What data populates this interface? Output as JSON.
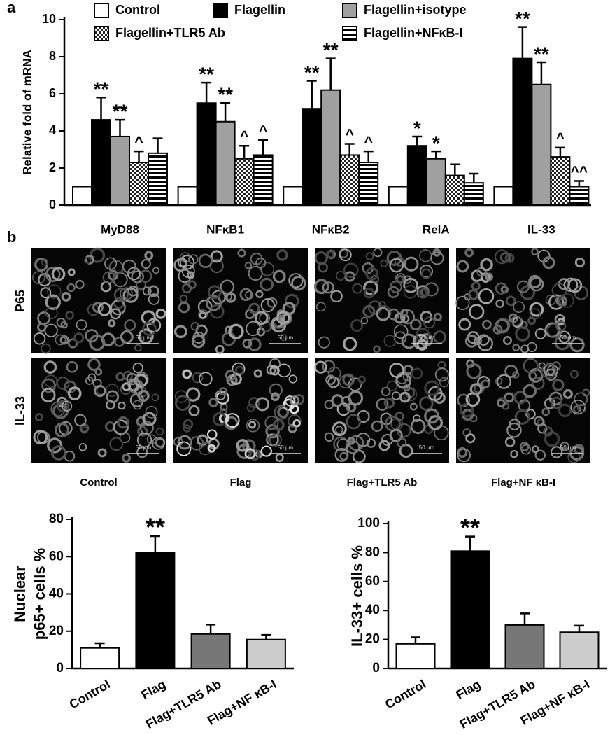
{
  "figure": {
    "panel_labels": [
      "a",
      "b"
    ],
    "image_rows": [
      "P65",
      "IL-33"
    ],
    "image_columns": [
      "Control",
      "Flag",
      "Flag+TLR5 Ab",
      "Flag+NF κB-I"
    ],
    "scale_bar": "50 μm"
  },
  "chart_data": [
    {
      "type": "bar",
      "ylabel": "Relative fold of mRNA",
      "categories": [
        "MyD88",
        "NFκB1",
        "NFκB2",
        "RelA",
        "IL-33"
      ],
      "series": [
        {
          "name": "Control",
          "color": "#ffffff",
          "values": [
            1,
            1,
            1,
            1,
            1
          ]
        },
        {
          "name": "Flagellin",
          "color": "#000000",
          "values": [
            4.6,
            5.5,
            5.2,
            3.2,
            7.9
          ],
          "errors": [
            1.2,
            1.1,
            1.5,
            0.5,
            1.7
          ],
          "annotations": [
            "**",
            "**",
            "**",
            "*",
            "**"
          ]
        },
        {
          "name": "Flagellin+isotype",
          "color": "#a0a0a0",
          "values": [
            3.7,
            4.5,
            6.2,
            2.5,
            6.5
          ],
          "errors": [
            0.9,
            1.0,
            1.7,
            0.4,
            1.2
          ],
          "annotations": [
            "**",
            "**",
            "**",
            "*",
            "**"
          ]
        },
        {
          "name": "Flagellin+TLR5 Ab",
          "color": "#222222",
          "pattern": "checker",
          "values": [
            2.3,
            2.5,
            2.7,
            1.6,
            2.6
          ],
          "errors": [
            0.6,
            0.7,
            0.6,
            0.6,
            0.5
          ],
          "annotations": [
            "^",
            "^",
            "^",
            null,
            "^"
          ]
        },
        {
          "name": "Flagellin+NFκB-I",
          "color": "#000000",
          "pattern": "stripes",
          "values": [
            2.8,
            2.7,
            2.3,
            1.2,
            1.0
          ],
          "errors": [
            0.8,
            0.8,
            0.6,
            0.5,
            0.3
          ],
          "annotations": [
            null,
            "^",
            "^",
            null,
            "^^"
          ]
        }
      ],
      "ylim": [
        0,
        10
      ],
      "yticks": [
        0,
        2,
        4,
        6,
        8,
        10
      ],
      "legend": "top"
    },
    {
      "type": "bar",
      "ylabel": [
        "Nuclear",
        "p65+ cells %"
      ],
      "categories": [
        "Control",
        "Flag",
        "Flag+TLR5 Ab",
        "Flag+NF κB-I"
      ],
      "values": [
        11,
        62,
        18.5,
        15.5
      ],
      "errors": [
        2.5,
        9,
        5,
        2.5
      ],
      "colors": [
        "#ffffff",
        "#000000",
        "#777777",
        "#cccccc"
      ],
      "annotations": [
        null,
        "**",
        null,
        null
      ],
      "ylim": [
        0,
        80
      ],
      "yticks": [
        0,
        20,
        40,
        60,
        80
      ]
    },
    {
      "type": "bar",
      "ylabel": "IL-33+ cells %",
      "categories": [
        "Control",
        "Flag",
        "Flag+TLR5 Ab",
        "Flag+NF κB-I"
      ],
      "values": [
        17,
        81,
        30,
        25
      ],
      "errors": [
        4.5,
        10,
        8,
        4.5
      ],
      "colors": [
        "#ffffff",
        "#000000",
        "#777777",
        "#cccccc"
      ],
      "annotations": [
        null,
        "**",
        null,
        null
      ],
      "ylim": [
        0,
        100
      ],
      "yticks": [
        0,
        20,
        40,
        60,
        80,
        100
      ]
    }
  ]
}
